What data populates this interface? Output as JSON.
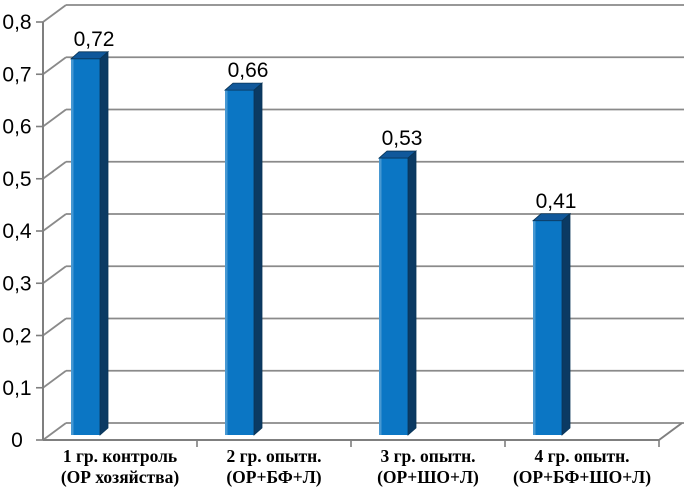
{
  "chart_data": {
    "type": "bar",
    "style": "3d-column",
    "title": "",
    "categories": [
      [
        "1 гр. контроль",
        "(ОР хозяйства)"
      ],
      [
        "2 гр. опытн.",
        "(ОР+БФ+Л)"
      ],
      [
        "3 гр. опытн.",
        "(ОР+ШО+Л)"
      ],
      [
        "4 гр. опытн.",
        "(ОР+БФ+ШО+Л)"
      ]
    ],
    "values": [
      0.72,
      0.66,
      0.53,
      0.41
    ],
    "value_labels": [
      "0,72",
      "0,66",
      "0,53",
      "0,41"
    ],
    "y_ticks": [
      {
        "value": 0.0,
        "label": "0"
      },
      {
        "value": 0.1,
        "label": "0,1"
      },
      {
        "value": 0.2,
        "label": "0,2"
      },
      {
        "value": 0.3,
        "label": "0,3"
      },
      {
        "value": 0.4,
        "label": "0,4"
      },
      {
        "value": 0.5,
        "label": "0,5"
      },
      {
        "value": 0.6,
        "label": "0,6"
      },
      {
        "value": 0.7,
        "label": "0,7"
      },
      {
        "value": 0.8,
        "label": "0,8"
      }
    ],
    "ylim": [
      0,
      0.8
    ],
    "xlabel": "",
    "ylabel": "",
    "grid": true,
    "legend_position": "none",
    "colors": {
      "bar_front": "#0B76C4",
      "bar_front_highlight": "#4798D2",
      "bar_top": "#10589B",
      "bar_side": "#0B3A63",
      "bar_edge": "#083457",
      "gridline": "#8A8A8A",
      "axis": "#7F7F7F",
      "value_label_text": "#000000",
      "tick_label_text": "#000000",
      "category_label_text": "#000000",
      "background": "#FFFFFF"
    }
  }
}
